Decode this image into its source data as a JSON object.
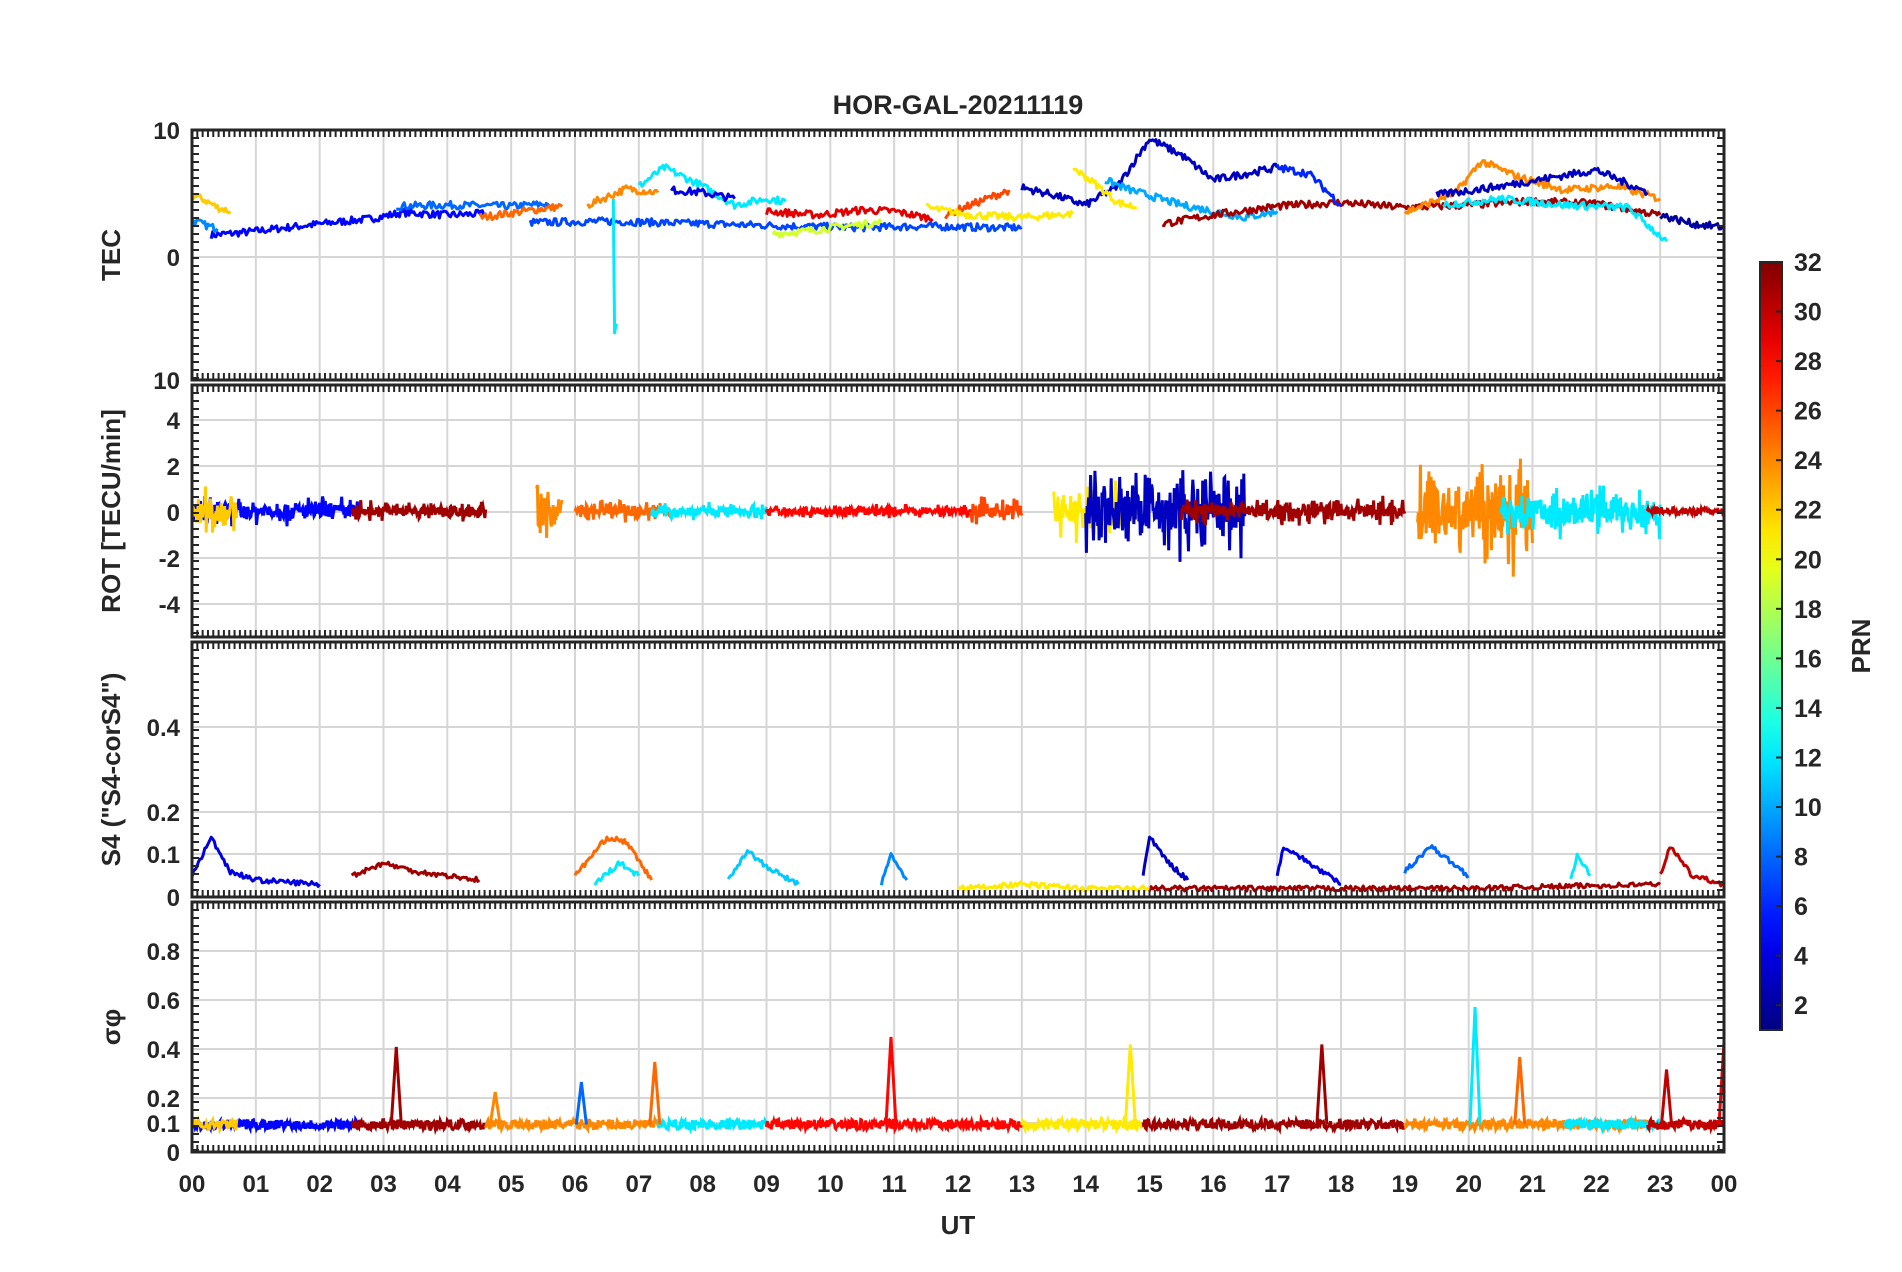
{
  "chart_data": {
    "title": "HOR-GAL-20211119",
    "xlabel": "UT",
    "xticks": [
      "00",
      "01",
      "02",
      "03",
      "04",
      "05",
      "06",
      "07",
      "08",
      "09",
      "10",
      "11",
      "12",
      "13",
      "14",
      "15",
      "16",
      "17",
      "18",
      "19",
      "20",
      "21",
      "22",
      "23",
      "00"
    ],
    "xlim_hours": [
      0,
      24
    ],
    "grid": true,
    "colormap": "jet",
    "colorbar": {
      "label": "PRN",
      "range": [
        1,
        32
      ],
      "ticks": [
        "2",
        "4",
        "6",
        "8",
        "10",
        "12",
        "14",
        "16",
        "18",
        "20",
        "22",
        "24",
        "26",
        "28",
        "30",
        "32"
      ],
      "placement": "right"
    },
    "panels": [
      {
        "type": "line",
        "ylabel": "TEC",
        "ylim": [
          -10,
          10
        ],
        "yticks": [
          "10",
          "0",
          "10"
        ],
        "series": [
          {
            "prn": 5,
            "x": [
              0.3,
              0.8,
              1.5,
              2.2,
              2.8,
              3.3,
              4.0,
              4.6
            ],
            "y": [
              1.6,
              1.8,
              2.2,
              2.6,
              2.9,
              3.4,
              3.2,
              3.3
            ]
          },
          {
            "prn": 22,
            "x": [
              0.0,
              0.2,
              0.4,
              0.6
            ],
            "y": [
              4.8,
              4.4,
              3.8,
              3.5
            ]
          },
          {
            "prn": 9,
            "x": [
              0.0,
              0.2,
              0.4
            ],
            "y": [
              2.8,
              2.4,
              2.1
            ]
          },
          {
            "prn": 8,
            "x": [
              3.2,
              4.0,
              5.0,
              5.6
            ],
            "y": [
              3.9,
              4.0,
              3.9,
              4.1
            ]
          },
          {
            "prn": 25,
            "x": [
              4.5,
              5.2,
              5.8
            ],
            "y": [
              3.0,
              3.5,
              3.9
            ]
          },
          {
            "prn": 7,
            "x": [
              5.3,
              6.5,
              8.0,
              9.5,
              10.5,
              11.5,
              12.5,
              13.0
            ],
            "y": [
              2.6,
              2.7,
              2.5,
              2.3,
              2.2,
              2.3,
              2.2,
              2.2
            ]
          },
          {
            "prn": 12,
            "x": [
              6.6,
              6.62,
              6.65
            ],
            "y": [
              4.5,
              -6.2,
              -5.5
            ]
          },
          {
            "prn": 24,
            "x": [
              6.2,
              6.8,
              7.3
            ],
            "y": [
              4.0,
              5.3,
              5.0
            ]
          },
          {
            "prn": 12,
            "x": [
              7.0,
              7.4,
              8.0,
              8.5,
              9.0,
              9.3
            ],
            "y": [
              5.5,
              7.0,
              5.5,
              4.0,
              4.5,
              4.3
            ]
          },
          {
            "prn": 4,
            "x": [
              7.5,
              8.0,
              8.5
            ],
            "y": [
              5.2,
              5.0,
              4.5
            ]
          },
          {
            "prn": 19,
            "x": [
              9.1,
              9.6,
              10.2,
              10.8
            ],
            "y": [
              1.7,
              1.9,
              2.3,
              2.6
            ]
          },
          {
            "prn": 29,
            "x": [
              9.0,
              9.8,
              10.5,
              11.0,
              11.6
            ],
            "y": [
              3.5,
              3.2,
              3.6,
              3.5,
              2.9
            ]
          },
          {
            "prn": 26,
            "x": [
              11.8,
              12.3,
              12.8
            ],
            "y": [
              3.2,
              4.2,
              5.2
            ]
          },
          {
            "prn": 21,
            "x": [
              11.5,
              12.2,
              13.0,
              13.8
            ],
            "y": [
              3.8,
              3.2,
              3.0,
              3.3
            ]
          },
          {
            "prn": 3,
            "x": [
              13.0,
              13.5,
              14.0,
              14.5,
              15.0,
              15.5,
              16.0,
              16.5,
              17.0
            ],
            "y": [
              5.4,
              4.8,
              4.0,
              5.5,
              9.3,
              8.0,
              6.0,
              6.5,
              7.0
            ]
          },
          {
            "prn": 21,
            "x": [
              13.8,
              14.2,
              14.5,
              14.8
            ],
            "y": [
              7.0,
              5.5,
              4.2,
              3.8
            ]
          },
          {
            "prn": 10,
            "x": [
              14.3,
              14.7,
              15.5,
              16.5,
              17.0
            ],
            "y": [
              6.0,
              5.2,
              4.0,
              3.0,
              3.5
            ]
          },
          {
            "prn": 31,
            "x": [
              15.2,
              16.0,
              17.0,
              18.0,
              19.0,
              20.0,
              21.0,
              22.0,
              23.0
            ],
            "y": [
              2.5,
              3.2,
              3.9,
              4.2,
              3.8,
              4.0,
              4.3,
              4.1,
              3.2
            ]
          },
          {
            "prn": 6,
            "x": [
              17.0,
              17.5,
              18.0
            ],
            "y": [
              7.0,
              6.5,
              4.0
            ]
          },
          {
            "prn": 24,
            "x": [
              19.0,
              19.8,
              20.2,
              20.8,
              21.5,
              22.3,
              23.0
            ],
            "y": [
              3.4,
              5.0,
              7.5,
              6.2,
              5.2,
              5.5,
              4.5
            ]
          },
          {
            "prn": 12,
            "x": [
              19.6,
              20.5,
              21.5,
              22.5,
              23.0,
              23.1
            ],
            "y": [
              4.0,
              4.5,
              4.0,
              3.8,
              1.5,
              1.1
            ]
          },
          {
            "prn": 3,
            "x": [
              19.5,
              20.5,
              21.3,
              22.0,
              22.8
            ],
            "y": [
              4.8,
              5.5,
              6.2,
              6.8,
              5.0
            ]
          },
          {
            "prn": 2,
            "x": [
              23.0,
              23.5,
              24.0
            ],
            "y": [
              3.2,
              2.5,
              2.2
            ]
          }
        ]
      },
      {
        "type": "line",
        "ylabel": "ROT [TECU/min]",
        "ylim": [
          -5,
          5
        ],
        "yticks": [
          "4",
          "2",
          "0",
          "-2",
          "-4"
        ],
        "series": [
          {
            "prn": 5,
            "amp": 0.7,
            "x0": 0.0,
            "x1": 2.6
          },
          {
            "prn": 22,
            "amp": 1.2,
            "x0": 0.0,
            "x1": 0.7
          },
          {
            "prn": 31,
            "amp": 0.5,
            "x0": 2.5,
            "x1": 4.6
          },
          {
            "prn": 24,
            "amp": 1.5,
            "x0": 5.4,
            "x1": 5.8
          },
          {
            "prn": 25,
            "amp": 0.5,
            "x0": 6.0,
            "x1": 7.5
          },
          {
            "prn": 12,
            "amp": 0.4,
            "x0": 7.2,
            "x1": 9.0
          },
          {
            "prn": 28,
            "amp": 0.3,
            "x0": 9.0,
            "x1": 12.2
          },
          {
            "prn": 26,
            "amp": 0.7,
            "x0": 12.2,
            "x1": 13.0
          },
          {
            "prn": 21,
            "amp": 1.5,
            "x0": 13.5,
            "x1": 14.8
          },
          {
            "prn": 3,
            "amp": 2.2,
            "x0": 14.0,
            "x1": 16.5
          },
          {
            "prn": 31,
            "amp": 0.7,
            "x0": 15.5,
            "x1": 19.0
          },
          {
            "prn": 24,
            "amp": 2.8,
            "x0": 19.2,
            "x1": 21.0
          },
          {
            "prn": 12,
            "amp": 1.3,
            "x0": 20.5,
            "x1": 23.0
          },
          {
            "prn": 30,
            "amp": 0.2,
            "x0": 22.8,
            "x1": 24.0
          }
        ]
      },
      {
        "type": "line",
        "ylabel": "S4 (\"S4-corS4\")",
        "ylim": [
          0,
          0.6
        ],
        "yticks": [
          "0.4",
          "0.2",
          "0.1",
          "0"
        ],
        "series": [
          {
            "prn": 4,
            "x": [
              0.0,
              0.3,
              0.6,
              1.0,
              2.0
            ],
            "y": [
              0.05,
              0.14,
              0.06,
              0.04,
              0.03
            ]
          },
          {
            "prn": 31,
            "x": [
              2.5,
              3.0,
              3.5,
              4.5
            ],
            "y": [
              0.05,
              0.08,
              0.06,
              0.04
            ]
          },
          {
            "prn": 25,
            "x": [
              6.0,
              6.5,
              6.8,
              7.2
            ],
            "y": [
              0.05,
              0.14,
              0.13,
              0.04
            ]
          },
          {
            "prn": 12,
            "x": [
              6.3,
              6.7,
              7.0
            ],
            "y": [
              0.03,
              0.08,
              0.05
            ]
          },
          {
            "prn": 11,
            "x": [
              8.4,
              8.7,
              9.0,
              9.5
            ],
            "y": [
              0.04,
              0.11,
              0.07,
              0.03
            ]
          },
          {
            "prn": 9,
            "x": [
              10.8,
              10.95,
              11.2
            ],
            "y": [
              0.03,
              0.1,
              0.04
            ]
          },
          {
            "prn": 3,
            "x": [
              14.9,
              15.0,
              15.3,
              15.6
            ],
            "y": [
              0.05,
              0.14,
              0.08,
              0.04
            ]
          },
          {
            "prn": 4,
            "x": [
              17.0,
              17.1,
              17.5,
              18.0
            ],
            "y": [
              0.05,
              0.12,
              0.08,
              0.03
            ]
          },
          {
            "prn": 8,
            "x": [
              19.0,
              19.4,
              20.0
            ],
            "y": [
              0.06,
              0.12,
              0.05
            ]
          },
          {
            "prn": 12,
            "x": [
              21.6,
              21.7,
              21.9
            ],
            "y": [
              0.04,
              0.1,
              0.05
            ]
          },
          {
            "prn": 30,
            "x": [
              23.0,
              23.15,
              23.5,
              24.0
            ],
            "y": [
              0.05,
              0.12,
              0.05,
              0.03
            ]
          },
          {
            "prn": 31,
            "x": [
              15.0,
              17.0,
              20.0,
              23.0
            ],
            "y": [
              0.02,
              0.02,
              0.02,
              0.03
            ]
          },
          {
            "prn": 21,
            "x": [
              12.0,
              13.0,
              14.0,
              15.0
            ],
            "y": [
              0.02,
              0.03,
              0.02,
              0.02
            ]
          }
        ]
      },
      {
        "type": "line",
        "ylabel": "σφ",
        "ylim": [
          0,
          1
        ],
        "yticks": [
          "0.8",
          "0.6",
          "0.4",
          "0.2",
          "0.1",
          "0"
        ],
        "baseline": 0.11,
        "spikes": [
          {
            "prn": 31,
            "x": 3.2,
            "y": 0.42
          },
          {
            "prn": 24,
            "x": 4.75,
            "y": 0.24
          },
          {
            "prn": 8,
            "x": 6.1,
            "y": 0.28
          },
          {
            "prn": 25,
            "x": 7.25,
            "y": 0.36
          },
          {
            "prn": 28,
            "x": 10.95,
            "y": 0.46
          },
          {
            "prn": 21,
            "x": 14.7,
            "y": 0.43
          },
          {
            "prn": 31,
            "x": 17.7,
            "y": 0.43
          },
          {
            "prn": 12,
            "x": 20.1,
            "y": 0.58
          },
          {
            "prn": 25,
            "x": 20.8,
            "y": 0.38
          },
          {
            "prn": 30,
            "x": 23.1,
            "y": 0.33
          },
          {
            "prn": 29,
            "x": 24.0,
            "y": 0.44
          }
        ],
        "segments": [
          {
            "prn": 5,
            "x0": 0.0,
            "x1": 2.6
          },
          {
            "prn": 22,
            "x0": 0.0,
            "x1": 0.7
          },
          {
            "prn": 31,
            "x0": 2.5,
            "x1": 4.6
          },
          {
            "prn": 24,
            "x0": 4.6,
            "x1": 7.3
          },
          {
            "prn": 12,
            "x0": 7.3,
            "x1": 9.0
          },
          {
            "prn": 28,
            "x0": 9.0,
            "x1": 13.0
          },
          {
            "prn": 21,
            "x0": 13.0,
            "x1": 14.9
          },
          {
            "prn": 31,
            "x0": 14.9,
            "x1": 19.0
          },
          {
            "prn": 24,
            "x0": 19.0,
            "x1": 22.8
          },
          {
            "prn": 12,
            "x0": 21.5,
            "x1": 23.0
          },
          {
            "prn": 30,
            "x0": 22.8,
            "x1": 24.0
          }
        ]
      }
    ]
  }
}
